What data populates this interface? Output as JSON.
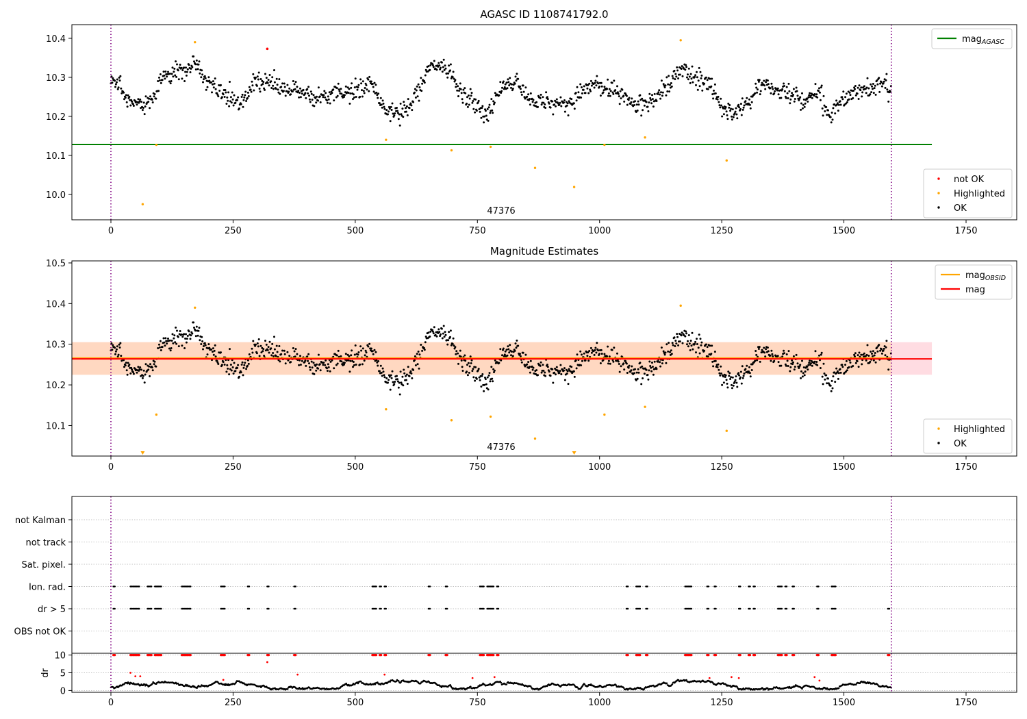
{
  "chart_data": [
    {
      "type": "scatter",
      "title": "AGASC ID 1108741792.0",
      "xlim": [
        -80,
        1855
      ],
      "ylim": [
        9.935,
        10.435
      ],
      "x_ticks": [
        "0",
        "250",
        "500",
        "750",
        "1000",
        "1250",
        "1500",
        "1750"
      ],
      "y_ticks": [
        "10.0",
        "10.1",
        "10.2",
        "10.3",
        "10.4"
      ],
      "hlines": [
        {
          "name": "mag_AGASC",
          "y": 10.128,
          "x_end": 1680,
          "color": "#008000"
        }
      ],
      "vlines": [
        0,
        1597
      ],
      "annotation": "47376",
      "legends": [
        {
          "entries": [
            {
              "label_main": "mag",
              "label_sub": "AGASC",
              "kind": "line",
              "color": "#008000"
            }
          ]
        },
        {
          "entries": [
            {
              "label": "not OK",
              "kind": "dot",
              "color": "#ff0000"
            },
            {
              "label": "Highlighted",
              "kind": "dot",
              "color": "#ffa500"
            },
            {
              "label": "OK",
              "kind": "dot",
              "color": "#000000"
            }
          ]
        }
      ],
      "highlighted_points": [
        [
          65,
          9.975
        ],
        [
          93,
          10.127
        ],
        [
          172,
          10.39
        ],
        [
          563,
          10.14
        ],
        [
          697,
          10.113
        ],
        [
          777,
          10.122
        ],
        [
          868,
          10.068
        ],
        [
          948,
          10.019
        ],
        [
          1010,
          10.127
        ],
        [
          1093,
          10.146
        ],
        [
          1166,
          10.395
        ],
        [
          1260,
          10.087
        ]
      ],
      "not_ok_points": [
        [
          320,
          10.373
        ]
      ]
    },
    {
      "type": "scatter",
      "title": "Magnitude Estimates",
      "xlim": [
        -80,
        1855
      ],
      "ylim": [
        10.025,
        10.505
      ],
      "x_ticks": [
        "0",
        "250",
        "500",
        "750",
        "1000",
        "1250",
        "1500",
        "1750"
      ],
      "y_ticks": [
        "10.1",
        "10.2",
        "10.3",
        "10.4",
        "10.5"
      ],
      "hlines": [
        {
          "name": "mag_OBSID",
          "y": 10.266,
          "x_end": 1597,
          "color": "#ffa500"
        },
        {
          "name": "mag",
          "y": 10.264,
          "x_end": 1680,
          "color": "#ff0000"
        }
      ],
      "bands": [
        {
          "name": "mag range",
          "y0": 10.225,
          "y1": 10.305,
          "x_end": 1680,
          "color": "#ffc0cb"
        },
        {
          "name": "mag_OBSID range",
          "y0": 10.225,
          "y1": 10.305,
          "x_end": 1597,
          "color": "#ffd7b5"
        }
      ],
      "vlines": [
        0,
        1597
      ],
      "annotation": "47376",
      "legends": [
        {
          "entries": [
            {
              "label_main": "mag",
              "label_sub": "OBSID",
              "kind": "line",
              "color": "#ffa500"
            },
            {
              "label": "mag",
              "kind": "line",
              "color": "#ff0000"
            }
          ]
        },
        {
          "entries": [
            {
              "label": "Highlighted",
              "kind": "dot",
              "color": "#ffa500"
            },
            {
              "label": "OK",
              "kind": "dot",
              "color": "#000000"
            }
          ]
        }
      ],
      "highlighted_points": [
        [
          93,
          10.127
        ],
        [
          172,
          10.39
        ],
        [
          563,
          10.14
        ],
        [
          697,
          10.113
        ],
        [
          777,
          10.122
        ],
        [
          868,
          10.068
        ],
        [
          1010,
          10.127
        ],
        [
          1093,
          10.146
        ],
        [
          1166,
          10.395
        ],
        [
          1260,
          10.087
        ]
      ],
      "clipped_low_points": [
        65,
        948
      ]
    },
    {
      "type": "scatter",
      "xlim": [
        -80,
        1855
      ],
      "categories": [
        "not Kalman",
        "not track",
        "Sat. pixel.",
        "Ion. rad.",
        "dr > 5",
        "OBS not OK"
      ],
      "vlines": [
        0,
        1597
      ],
      "flag_runs": [
        {
          "category": "Ion. rad.",
          "x": [
            5,
            40,
            45,
            50,
            55,
            75,
            80,
            90,
            95,
            100,
            145,
            150,
            155,
            160,
            225,
            230,
            280,
            320,
            375,
            535,
            540,
            550,
            560,
            650,
            685,
            755,
            760,
            770,
            775,
            780,
            790,
            1055,
            1075,
            1080,
            1095,
            1175,
            1180,
            1185,
            1220,
            1235,
            1285,
            1305,
            1315,
            1365,
            1370,
            1380,
            1395,
            1445,
            1475,
            1480
          ]
        },
        {
          "category": "dr > 5",
          "x": [
            5,
            40,
            45,
            50,
            55,
            75,
            80,
            90,
            95,
            100,
            145,
            150,
            155,
            160,
            225,
            230,
            280,
            320,
            375,
            535,
            540,
            550,
            560,
            650,
            685,
            755,
            760,
            770,
            775,
            780,
            790,
            1055,
            1075,
            1080,
            1095,
            1175,
            1180,
            1185,
            1220,
            1235,
            1285,
            1305,
            1315,
            1365,
            1370,
            1380,
            1395,
            1445,
            1475,
            1480,
            1590
          ]
        }
      ]
    },
    {
      "type": "scatter",
      "ylabel": "dr",
      "xlim": [
        -80,
        1855
      ],
      "ylim": [
        -0.5,
        10.5
      ],
      "x_ticks": [
        "0",
        "250",
        "500",
        "750",
        "1000",
        "1250",
        "1500",
        "1750"
      ],
      "y_ticks": [
        "0",
        "5",
        "10"
      ],
      "vlines": [
        0,
        1597
      ],
      "red_outliers": [
        [
          320,
          8.0
        ],
        [
          40,
          5.0
        ],
        [
          50,
          4.0
        ],
        [
          60,
          4.0
        ],
        [
          230,
          3.0
        ],
        [
          382,
          4.5
        ],
        [
          560,
          4.5
        ],
        [
          785,
          3.8
        ],
        [
          1225,
          3.5
        ],
        [
          1270,
          3.8
        ],
        [
          1285,
          3.5
        ],
        [
          1440,
          3.8
        ],
        [
          1450,
          2.8
        ],
        [
          740,
          3.5
        ]
      ]
    }
  ]
}
